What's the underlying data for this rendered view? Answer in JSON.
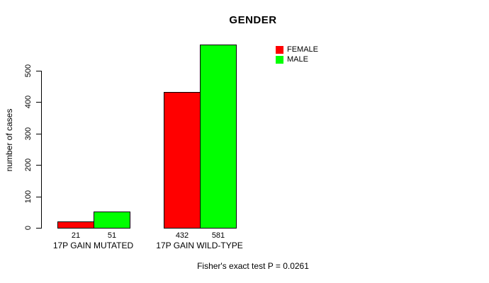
{
  "chart_data": {
    "type": "bar",
    "title": "GENDER",
    "xlabel": "",
    "ylabel": "number of cases",
    "categories": [
      "17P GAIN MUTATED",
      "17P GAIN WILD-TYPE"
    ],
    "series": [
      {
        "name": "FEMALE",
        "color": "#ff0000",
        "values": [
          21,
          432
        ]
      },
      {
        "name": "MALE",
        "color": "#00ff00",
        "values": [
          51,
          581
        ]
      }
    ],
    "bar_value_labels": [
      [
        21,
        51
      ],
      [
        432,
        581
      ]
    ],
    "yticks": [
      0,
      100,
      200,
      300,
      400,
      500
    ],
    "ylim": [
      0,
      590
    ],
    "grid": false,
    "legend_position": "top-right-inside",
    "annotation": "Fisher's exact test P = 0.0261"
  }
}
